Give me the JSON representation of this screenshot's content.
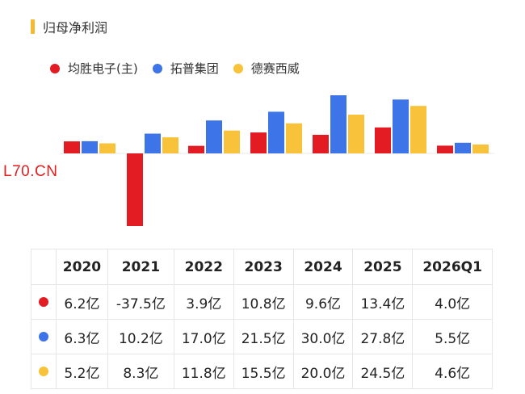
{
  "title": "归母净利润",
  "colors": {
    "title_accent": "#f5b82e",
    "series": [
      "#e31b23",
      "#3d74e8",
      "#f8c33a"
    ],
    "watermark": "#e02020"
  },
  "watermark": "L70.CN",
  "chart_data": {
    "type": "bar",
    "title": "归母净利润",
    "categories": [
      "2020",
      "2021",
      "2022",
      "2023",
      "2024",
      "2025",
      "2026Q1"
    ],
    "series": [
      {
        "name": "均胜电子(主)",
        "values": [
          6.2,
          -37.5,
          3.9,
          10.8,
          9.6,
          13.4,
          4.0
        ]
      },
      {
        "name": "拓普集团",
        "values": [
          6.3,
          10.2,
          17.0,
          21.5,
          30.0,
          27.8,
          5.5
        ]
      },
      {
        "name": "德赛西威",
        "values": [
          5.2,
          8.3,
          11.8,
          15.5,
          20.0,
          24.5,
          4.6
        ]
      }
    ],
    "unit": "亿",
    "legend_position": "top-left",
    "grid": false,
    "ylim": [
      -37.5,
      30.0
    ]
  },
  "table": {
    "header": [
      "",
      "2020",
      "2021",
      "2022",
      "2023",
      "2024",
      "2025",
      "2026Q1"
    ],
    "rows": [
      {
        "cells": [
          "6.2亿",
          "-37.5亿",
          "3.9亿",
          "10.8亿",
          "9.6亿",
          "13.4亿",
          "4.0亿"
        ]
      },
      {
        "cells": [
          "6.3亿",
          "10.2亿",
          "17.0亿",
          "21.5亿",
          "30.0亿",
          "27.8亿",
          "5.5亿"
        ]
      },
      {
        "cells": [
          "5.2亿",
          "8.3亿",
          "11.8亿",
          "15.5亿",
          "20.0亿",
          "24.5亿",
          "4.6亿"
        ]
      }
    ]
  }
}
